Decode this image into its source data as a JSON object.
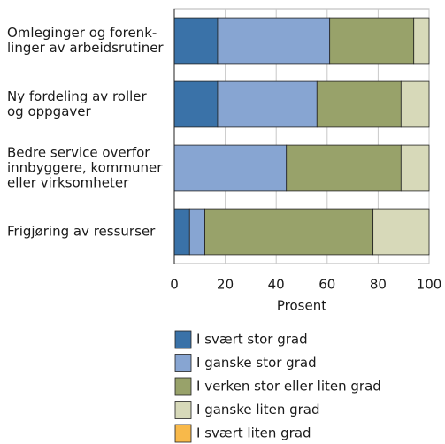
{
  "chart_data": {
    "type": "stacked-barh",
    "categories": [
      [
        "Omleginger og forenk-",
        "linger av arbeidsrutiner"
      ],
      [
        "Ny fordeling av roller",
        "og oppgaver"
      ],
      [
        "Bedre service overfor",
        "innbyggere, kommuner",
        "eller virksomheter"
      ],
      [
        "Frigjøring av ressurser"
      ]
    ],
    "series": [
      {
        "name": "I svært stor grad",
        "color": "#3a72a8",
        "values": [
          17,
          17,
          0,
          6
        ]
      },
      {
        "name": "I ganske stor grad",
        "color": "#87a5d2",
        "values": [
          44,
          39,
          44,
          6
        ]
      },
      {
        "name": "I verken stor eller liten grad",
        "color": "#98a26a",
        "values": [
          33,
          33,
          45,
          66
        ]
      },
      {
        "name": "I ganske liten grad",
        "color": "#d7d9b9",
        "values": [
          6,
          11,
          11,
          22
        ]
      },
      {
        "name": "I svært liten grad",
        "color": "#f8b94a",
        "values": [
          0,
          0,
          0,
          0
        ]
      }
    ],
    "xlabel": "Prosent",
    "xlim": [
      0,
      100
    ],
    "xticks": [
      0,
      20,
      40,
      60,
      80,
      100
    ],
    "grid": true
  }
}
